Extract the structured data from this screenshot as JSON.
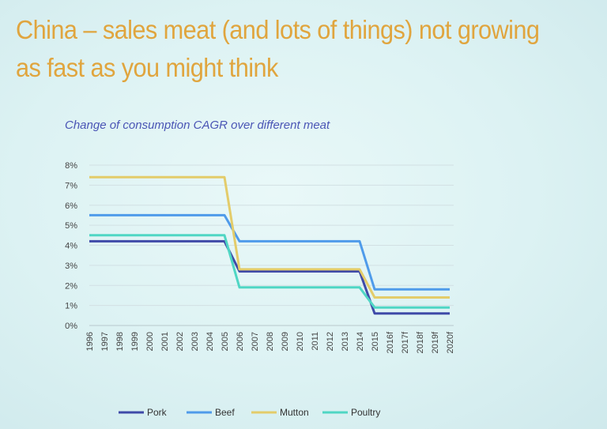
{
  "slide": {
    "title_line1": "China – sales meat (and lots of things) not growing",
    "title_line2": "as fast as you might think",
    "title_color": "#e0a53e"
  },
  "chart_data": {
    "type": "line",
    "title": "Change of consumption CAGR over different meat",
    "x": [
      "1996",
      "1997",
      "1998",
      "1999",
      "2000",
      "2001",
      "2002",
      "2003",
      "2004",
      "2005",
      "2006",
      "2007",
      "2008",
      "2009",
      "2010",
      "2011",
      "2012",
      "2013",
      "2014",
      "2015",
      "2016f",
      "2017f",
      "2018f",
      "2019f",
      "2020f"
    ],
    "y_ticks": [
      "0%",
      "1%",
      "2%",
      "3%",
      "4%",
      "5%",
      "6%",
      "7%",
      "8%"
    ],
    "ylim": [
      0,
      8
    ],
    "grid": true,
    "legend_position": "bottom",
    "series": [
      {
        "name": "Pork",
        "color": "#3f4aa8",
        "values": [
          4.2,
          4.2,
          4.2,
          4.2,
          4.2,
          4.2,
          4.2,
          4.2,
          4.2,
          4.2,
          2.7,
          2.7,
          2.7,
          2.7,
          2.7,
          2.7,
          2.7,
          2.7,
          2.7,
          0.6,
          0.6,
          0.6,
          0.6,
          0.6,
          0.6
        ]
      },
      {
        "name": "Beef",
        "color": "#4f9bea",
        "values": [
          5.5,
          5.5,
          5.5,
          5.5,
          5.5,
          5.5,
          5.5,
          5.5,
          5.5,
          5.5,
          4.2,
          4.2,
          4.2,
          4.2,
          4.2,
          4.2,
          4.2,
          4.2,
          4.2,
          1.8,
          1.8,
          1.8,
          1.8,
          1.8,
          1.8
        ]
      },
      {
        "name": "Mutton",
        "color": "#e3cc6a",
        "values": [
          7.4,
          7.4,
          7.4,
          7.4,
          7.4,
          7.4,
          7.4,
          7.4,
          7.4,
          7.4,
          2.8,
          2.8,
          2.8,
          2.8,
          2.8,
          2.8,
          2.8,
          2.8,
          2.8,
          1.4,
          1.4,
          1.4,
          1.4,
          1.4,
          1.4
        ]
      },
      {
        "name": "Poultry",
        "color": "#4fd6c4",
        "values": [
          4.5,
          4.5,
          4.5,
          4.5,
          4.5,
          4.5,
          4.5,
          4.5,
          4.5,
          4.5,
          1.9,
          1.9,
          1.9,
          1.9,
          1.9,
          1.9,
          1.9,
          1.9,
          1.9,
          0.9,
          0.9,
          0.9,
          0.9,
          0.9,
          0.9
        ]
      }
    ]
  }
}
